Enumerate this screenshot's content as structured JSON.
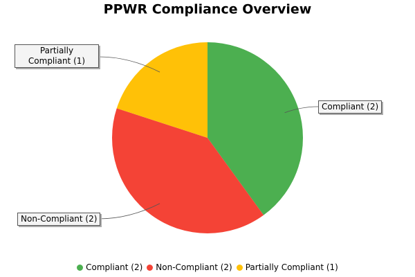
{
  "chart_data": {
    "type": "pie",
    "title": "PPWR Compliance Overview",
    "categories": [
      "Compliant (2)",
      "Non-Compliant (2)",
      "Partially Compliant (1)"
    ],
    "values": [
      2,
      2,
      1
    ],
    "colors": [
      "#4caf50",
      "#f44336",
      "#ffc107"
    ],
    "legend": "bottom"
  }
}
